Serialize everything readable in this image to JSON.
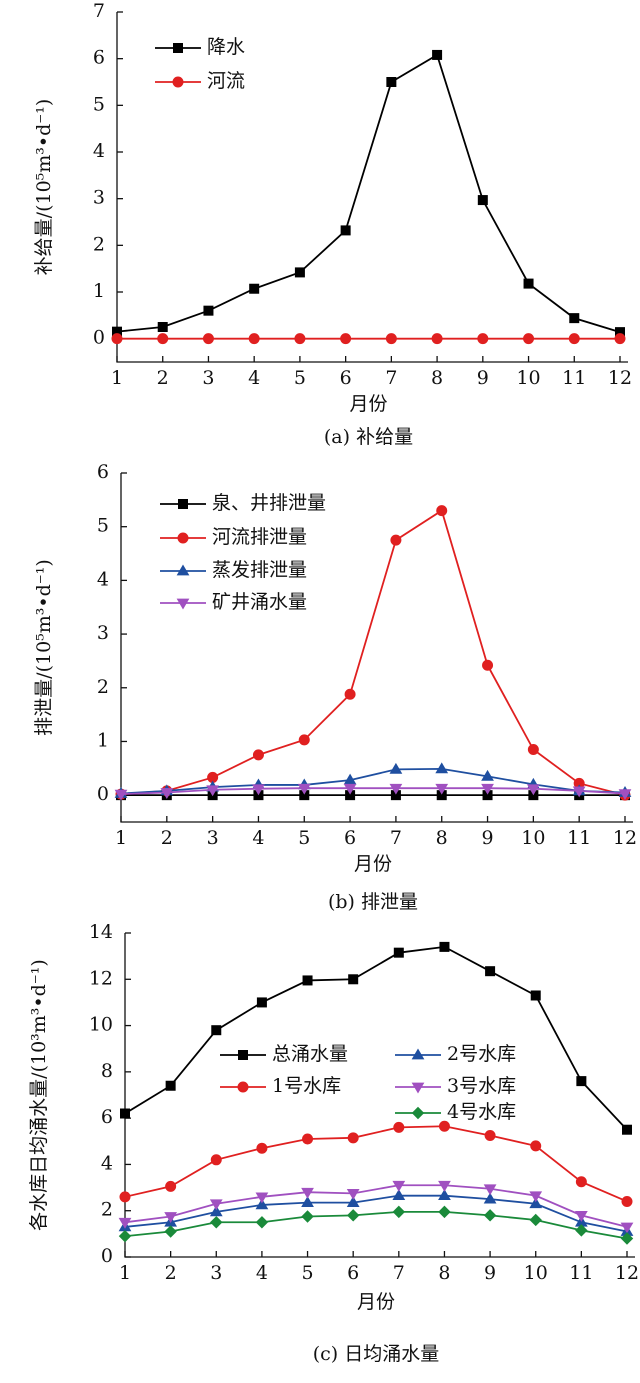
{
  "chart_data": [
    {
      "type": "line",
      "xlabel": "月份",
      "caption": "(a) 补给量",
      "ylabel": "补给量/(10⁵m³•d⁻¹)",
      "x": [
        1,
        2,
        3,
        4,
        5,
        6,
        7,
        8,
        9,
        10,
        11,
        12
      ],
      "xlim": [
        1,
        12
      ],
      "xticks": [
        1,
        2,
        3,
        4,
        5,
        6,
        7,
        8,
        9,
        10,
        11,
        12
      ],
      "ylim": [
        -0.5,
        7
      ],
      "yticks": [
        0,
        1,
        2,
        3,
        4,
        5,
        6,
        7
      ],
      "series": [
        {
          "name": "降水",
          "color": "#000000",
          "marker": "square",
          "values": [
            0.15,
            0.25,
            0.6,
            1.07,
            1.42,
            2.32,
            5.5,
            6.08,
            2.97,
            1.18,
            0.44,
            0.14
          ]
        },
        {
          "name": "河流",
          "color": "#e02020",
          "marker": "circle",
          "values": [
            0,
            0,
            0,
            0,
            0,
            0,
            0,
            0,
            0,
            0,
            0,
            0
          ]
        }
      ]
    },
    {
      "type": "line",
      "xlabel": "月份",
      "caption": "(b) 排泄量",
      "ylabel": "排泄量/(10⁵m³•d⁻¹)",
      "x": [
        1,
        2,
        3,
        4,
        5,
        6,
        7,
        8,
        9,
        10,
        11,
        12
      ],
      "xlim": [
        1,
        12
      ],
      "xticks": [
        1,
        2,
        3,
        4,
        5,
        6,
        7,
        8,
        9,
        10,
        11,
        12
      ],
      "ylim": [
        -0.5,
        6
      ],
      "yticks": [
        0,
        1,
        2,
        3,
        4,
        5,
        6
      ],
      "series": [
        {
          "name": "泉、井排泄量",
          "color": "#000000",
          "marker": "square",
          "values": [
            0,
            0,
            0,
            0,
            0,
            0,
            0,
            0,
            0,
            0,
            0,
            0
          ]
        },
        {
          "name": "河流排泄量",
          "color": "#e02020",
          "marker": "circle",
          "values": [
            0.02,
            0.08,
            0.33,
            0.75,
            1.03,
            1.88,
            4.75,
            5.3,
            2.42,
            0.85,
            0.22,
            0
          ]
        },
        {
          "name": "蒸发排泄量",
          "color": "#1f4fa0",
          "marker": "triangle-up",
          "values": [
            0.03,
            0.08,
            0.15,
            0.19,
            0.19,
            0.28,
            0.48,
            0.49,
            0.35,
            0.2,
            0.08,
            0.05
          ]
        },
        {
          "name": "矿井涌水量",
          "color": "#a050c0",
          "marker": "triangle-down",
          "values": [
            0.02,
            0.05,
            0.1,
            0.12,
            0.13,
            0.13,
            0.13,
            0.13,
            0.13,
            0.12,
            0.08,
            0.03
          ]
        }
      ]
    },
    {
      "type": "line",
      "xlabel": "月份",
      "caption": "(c) 日均涌水量",
      "ylabel": "各水库日均涌水量/(10³m³•d⁻¹)",
      "x": [
        1,
        2,
        3,
        4,
        5,
        6,
        7,
        8,
        9,
        10,
        11,
        12
      ],
      "xlim": [
        1,
        12
      ],
      "xticks": [
        1,
        2,
        3,
        4,
        5,
        6,
        7,
        8,
        9,
        10,
        11,
        12
      ],
      "ylim": [
        0,
        14
      ],
      "yticks": [
        0,
        2,
        4,
        6,
        8,
        10,
        12,
        14
      ],
      "series": [
        {
          "name": "总涌水量",
          "color": "#000000",
          "marker": "square",
          "values": [
            6.2,
            7.4,
            9.8,
            11.0,
            11.95,
            12.0,
            13.15,
            13.4,
            12.35,
            11.3,
            7.6,
            5.5
          ]
        },
        {
          "name": "1号水库",
          "color": "#e02020",
          "marker": "circle",
          "values": [
            2.6,
            3.05,
            4.2,
            4.7,
            5.1,
            5.15,
            5.6,
            5.65,
            5.25,
            4.8,
            3.25,
            2.4
          ]
        },
        {
          "name": "2号水库",
          "color": "#1f4fa0",
          "marker": "triangle-up",
          "values": [
            1.3,
            1.5,
            1.95,
            2.25,
            2.35,
            2.35,
            2.65,
            2.65,
            2.5,
            2.3,
            1.5,
            1.1
          ]
        },
        {
          "name": "3号水库",
          "color": "#a050c0",
          "marker": "triangle-down",
          "values": [
            1.5,
            1.75,
            2.3,
            2.6,
            2.8,
            2.75,
            3.1,
            3.1,
            2.95,
            2.65,
            1.8,
            1.3
          ]
        },
        {
          "name": "4号水库",
          "color": "#1a8a3a",
          "marker": "diamond",
          "values": [
            0.9,
            1.1,
            1.5,
            1.5,
            1.75,
            1.8,
            1.95,
            1.95,
            1.8,
            1.6,
            1.15,
            0.8
          ]
        }
      ]
    }
  ]
}
